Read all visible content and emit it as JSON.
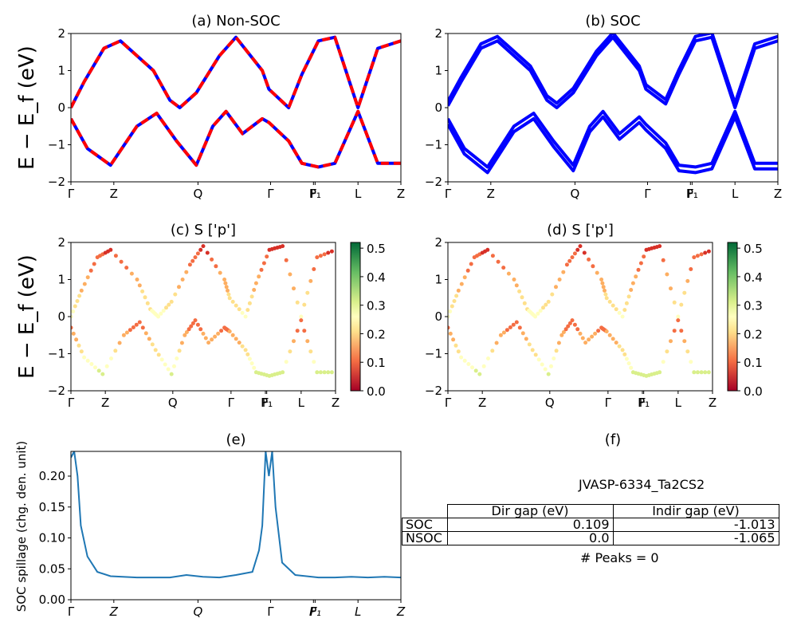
{
  "panels": {
    "a": {
      "title": "(a) Non-SOC",
      "ylabel": "E − E_f (eV)",
      "yticks": [
        "2",
        "1",
        "0",
        "−1",
        "−2"
      ],
      "xticks": [
        "Γ",
        "Z",
        "Q",
        "Γ",
        "F",
        "P₁",
        "L",
        "Z"
      ],
      "ylim": [
        -2,
        2
      ],
      "series_colors": {
        "solid": "#0000ff",
        "dashed": "#ff0000"
      }
    },
    "b": {
      "title": "(b) SOC",
      "yticks": [
        "2",
        "1",
        "0",
        "−1",
        "−2"
      ],
      "xticks": [
        "Γ",
        "Z",
        "Q",
        "Γ",
        "F",
        "P₁",
        "L",
        "Z"
      ],
      "ylim": [
        -2,
        2
      ],
      "series_colors": {
        "solid": "#0000ff"
      }
    },
    "c": {
      "title": "(c)  S ['p']",
      "ylabel": "E − E_f (eV)",
      "yticks": [
        "2",
        "1",
        "0",
        "−1",
        "−2"
      ],
      "xticks": [
        "Γ",
        "Z",
        "Q",
        "Γ",
        "F",
        "P₁",
        "L",
        "Z"
      ],
      "colorbar_ticks": [
        "0.5",
        "0.4",
        "0.3",
        "0.2",
        "0.1",
        "0.0"
      ],
      "colormap": "RdYlGn"
    },
    "d": {
      "title": "(d) S ['p']",
      "yticks": [
        "2",
        "1",
        "0",
        "−1",
        "−2"
      ],
      "xticks": [
        "Γ",
        "Z",
        "Q",
        "Γ",
        "F",
        "P₁",
        "L",
        "Z"
      ],
      "colorbar_ticks": [
        "0.5",
        "0.4",
        "0.3",
        "0.2",
        "0.1",
        "0.0"
      ],
      "colormap": "RdYlGn"
    },
    "e": {
      "title": "(e)",
      "ylabel": "SOC spillage (chg. den. unit)",
      "yticks": [
        "0.20",
        "0.15",
        "0.10",
        "0.05",
        "0.00"
      ],
      "xticks": [
        "Γ",
        "Z",
        "Q",
        "Γ",
        "F",
        "P₁",
        "L",
        "Z"
      ]
    },
    "f": {
      "title": "(f)",
      "material": "JVASP-6334_Ta2CS2",
      "table": {
        "headers": [
          "Dir gap (eV)",
          "Indir gap (eV)"
        ],
        "rows": [
          {
            "label": "SOC",
            "dir": "0.109",
            "indir": "-1.013"
          },
          {
            "label": "NSOC",
            "dir": "0.0",
            "indir": "-1.065"
          }
        ]
      },
      "peaks": "# Peaks = 0"
    }
  },
  "chart_data": [
    {
      "type": "line",
      "title": "(a) Non-SOC",
      "ylabel": "E − E_f (eV)",
      "ylim": [
        -2,
        2
      ],
      "x_labels": [
        "Γ",
        "Z",
        "Q",
        "Γ",
        "F",
        "P₁",
        "L",
        "Z"
      ],
      "x_label_positions": [
        0,
        0.13,
        0.385,
        0.605,
        0.735,
        0.74,
        0.87,
        1.0
      ],
      "series": [
        {
          "values": [
            [
              0,
              0
            ],
            [
              0.04,
              0.7
            ],
            [
              0.1,
              1.6
            ],
            [
              0.15,
              1.8
            ],
            [
              0.25,
              1.0
            ],
            [
              0.3,
              0.2
            ],
            [
              0.33,
              0.0
            ],
            [
              0.38,
              0.4
            ],
            [
              0.45,
              1.4
            ],
            [
              0.5,
              1.9
            ],
            [
              0.58,
              1.0
            ],
            [
              0.6,
              0.5
            ],
            [
              0.66,
              0.0
            ],
            [
              0.7,
              0.9
            ],
            [
              0.75,
              1.8
            ],
            [
              0.8,
              1.9
            ],
            [
              0.87,
              0.0
            ],
            [
              0.93,
              1.6
            ],
            [
              1.0,
              1.8
            ]
          ]
        },
        {
          "values": [
            [
              0,
              -0.3
            ],
            [
              0.05,
              -1.1
            ],
            [
              0.12,
              -1.55
            ],
            [
              0.2,
              -0.5
            ],
            [
              0.26,
              -0.15
            ],
            [
              0.32,
              -0.9
            ],
            [
              0.38,
              -1.55
            ],
            [
              0.43,
              -0.5
            ],
            [
              0.47,
              -0.1
            ],
            [
              0.52,
              -0.7
            ],
            [
              0.58,
              -0.3
            ],
            [
              0.6,
              -0.4
            ],
            [
              0.66,
              -0.9
            ],
            [
              0.7,
              -1.5
            ],
            [
              0.75,
              -1.6
            ],
            [
              0.8,
              -1.5
            ],
            [
              0.87,
              -0.1
            ],
            [
              0.93,
              -1.5
            ],
            [
              1.0,
              -1.5
            ]
          ]
        }
      ]
    },
    {
      "type": "line",
      "title": "(b) SOC",
      "ylim": [
        -2,
        2
      ],
      "x_labels": [
        "Γ",
        "Z",
        "Q",
        "Γ",
        "F",
        "P₁",
        "L",
        "Z"
      ],
      "x_label_positions": [
        0,
        0.13,
        0.385,
        0.605,
        0.735,
        0.74,
        0.87,
        1.0
      ],
      "series": [
        {
          "values": [
            [
              0,
              0.05
            ],
            [
              0.04,
              0.7
            ],
            [
              0.1,
              1.6
            ],
            [
              0.15,
              1.8
            ],
            [
              0.25,
              1.0
            ],
            [
              0.3,
              0.2
            ],
            [
              0.33,
              0.0
            ],
            [
              0.38,
              0.4
            ],
            [
              0.45,
              1.4
            ],
            [
              0.5,
              1.9
            ],
            [
              0.58,
              1.0
            ],
            [
              0.6,
              0.5
            ],
            [
              0.66,
              0.1
            ],
            [
              0.7,
              0.9
            ],
            [
              0.75,
              1.8
            ],
            [
              0.8,
              1.9
            ],
            [
              0.87,
              0.0
            ],
            [
              0.93,
              1.6
            ],
            [
              1.0,
              1.8
            ]
          ]
        },
        {
          "values": [
            [
              0,
              -0.3
            ],
            [
              0.05,
              -1.1
            ],
            [
              0.12,
              -1.6
            ],
            [
              0.2,
              -0.5
            ],
            [
              0.26,
              -0.15
            ],
            [
              0.32,
              -0.9
            ],
            [
              0.38,
              -1.55
            ],
            [
              0.43,
              -0.5
            ],
            [
              0.47,
              -0.1
            ],
            [
              0.52,
              -0.7
            ],
            [
              0.58,
              -0.25
            ],
            [
              0.6,
              -0.45
            ],
            [
              0.66,
              -0.95
            ],
            [
              0.7,
              -1.55
            ],
            [
              0.75,
              -1.6
            ],
            [
              0.8,
              -1.5
            ],
            [
              0.87,
              -0.1
            ],
            [
              0.93,
              -1.5
            ],
            [
              1.0,
              -1.5
            ]
          ]
        }
      ]
    },
    {
      "type": "scatter",
      "title": "(c)  S ['p']",
      "ylim": [
        -2,
        2
      ],
      "x_labels": [
        "Γ",
        "Z",
        "Q",
        "Γ",
        "F",
        "P₁",
        "L",
        "Z"
      ],
      "colorbar_range": [
        0.0,
        0.52
      ]
    },
    {
      "type": "scatter",
      "title": "(d) S ['p']",
      "ylim": [
        -2,
        2
      ],
      "x_labels": [
        "Γ",
        "Z",
        "Q",
        "Γ",
        "F",
        "P₁",
        "L",
        "Z"
      ],
      "colorbar_range": [
        0.0,
        0.52
      ]
    },
    {
      "type": "line",
      "title": "(e)",
      "ylabel": "SOC spillage (chg. den. unit)",
      "ylim": [
        0,
        0.24
      ],
      "x_labels": [
        "Γ",
        "Z",
        "Q",
        "Γ",
        "F",
        "P₁",
        "L",
        "Z"
      ],
      "series": [
        {
          "values": [
            [
              0,
              0.23
            ],
            [
              0.01,
              0.24
            ],
            [
              0.02,
              0.2
            ],
            [
              0.03,
              0.12
            ],
            [
              0.05,
              0.07
            ],
            [
              0.08,
              0.045
            ],
            [
              0.12,
              0.038
            ],
            [
              0.2,
              0.036
            ],
            [
              0.3,
              0.036
            ],
            [
              0.35,
              0.04
            ],
            [
              0.4,
              0.037
            ],
            [
              0.45,
              0.036
            ],
            [
              0.5,
              0.04
            ],
            [
              0.55,
              0.045
            ],
            [
              0.57,
              0.08
            ],
            [
              0.58,
              0.12
            ],
            [
              0.59,
              0.24
            ],
            [
              0.6,
              0.2
            ],
            [
              0.61,
              0.24
            ],
            [
              0.62,
              0.15
            ],
            [
              0.64,
              0.06
            ],
            [
              0.68,
              0.04
            ],
            [
              0.75,
              0.036
            ],
            [
              0.8,
              0.036
            ],
            [
              0.85,
              0.037
            ],
            [
              0.9,
              0.036
            ],
            [
              0.95,
              0.037
            ],
            [
              1.0,
              0.036
            ]
          ]
        }
      ]
    }
  ]
}
